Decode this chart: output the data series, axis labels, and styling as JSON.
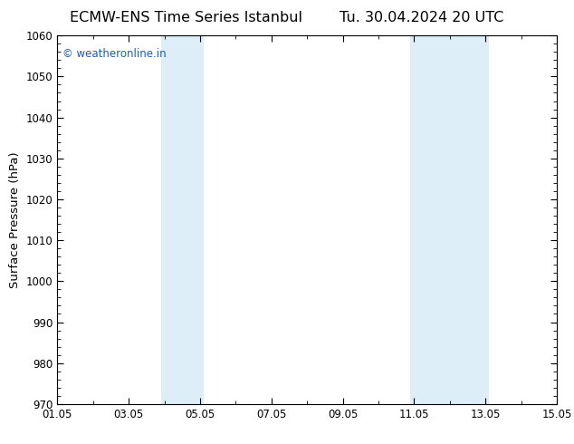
{
  "title": "ECMW-ENS Time Series Istanbul",
  "title_right": "Tu. 30.04.2024 20 UTC",
  "ylabel": "Surface Pressure (hPa)",
  "ylim": [
    970,
    1060
  ],
  "yticks": [
    970,
    980,
    990,
    1000,
    1010,
    1020,
    1030,
    1040,
    1050,
    1060
  ],
  "xtick_labels": [
    "01.05",
    "03.05",
    "05.05",
    "07.05",
    "09.05",
    "11.05",
    "13.05",
    "15.05"
  ],
  "xtick_days": [
    1,
    3,
    5,
    7,
    9,
    11,
    13,
    15
  ],
  "xlim": [
    1,
    15
  ],
  "shaded_regions": [
    {
      "start_day": 3.9,
      "end_day": 5.1
    },
    {
      "start_day": 10.9,
      "end_day": 11.9
    },
    {
      "start_day": 11.9,
      "end_day": 13.1
    }
  ],
  "shade_color": "#ddeef8",
  "background_color": "#ffffff",
  "watermark_text": "© weatheronline.in",
  "watermark_color": "#1a5fb4",
  "title_color": "#000000",
  "axis_color": "#000000",
  "tick_color": "#000000",
  "figsize": [
    6.34,
    4.9
  ],
  "dpi": 100,
  "title_fontsize": 11.5,
  "ylabel_fontsize": 9.5,
  "tick_fontsize": 8.5
}
